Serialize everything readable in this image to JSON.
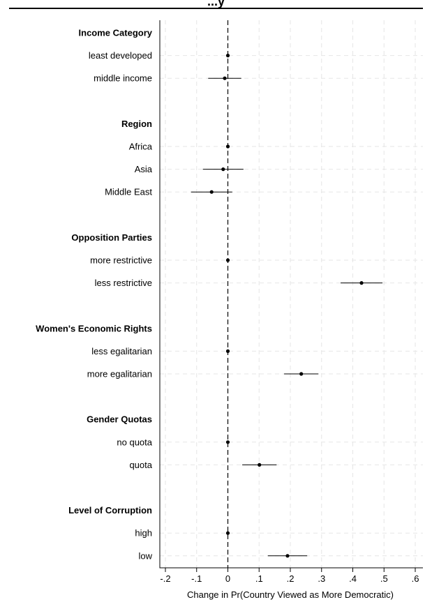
{
  "page": {
    "title": "...y"
  },
  "chart_data": {
    "type": "scatter",
    "title": "",
    "xlabel": "Change in Pr(Country Viewed as More Democratic)",
    "ylabel": "",
    "xlim": [
      -0.2,
      0.6
    ],
    "x_ticks": [
      {
        "value": -0.2,
        "label": "-.2"
      },
      {
        "value": -0.1,
        "label": "-.1"
      },
      {
        "value": 0,
        "label": "0"
      },
      {
        "value": 0.1,
        "label": ".1"
      },
      {
        "value": 0.2,
        "label": ".2"
      },
      {
        "value": 0.3,
        "label": ".3"
      },
      {
        "value": 0.4,
        "label": ".4"
      },
      {
        "value": 0.5,
        "label": ".5"
      },
      {
        "value": 0.6,
        "label": ".6"
      }
    ],
    "reference_line": {
      "x": 0,
      "style": "dashed"
    },
    "grid": true,
    "rows": [
      {
        "kind": "group",
        "label": "Income Category"
      },
      {
        "kind": "item",
        "label": "least developed",
        "estimate": 0,
        "ci": [
          0,
          0
        ]
      },
      {
        "kind": "item",
        "label": "middle income",
        "estimate": -0.01,
        "ci": [
          -0.063,
          0.043
        ]
      },
      {
        "kind": "blank"
      },
      {
        "kind": "group",
        "label": "Region"
      },
      {
        "kind": "item",
        "label": "Africa",
        "estimate": 0,
        "ci": [
          0,
          0
        ]
      },
      {
        "kind": "item",
        "label": "Asia",
        "estimate": -0.015,
        "ci": [
          -0.08,
          0.05
        ]
      },
      {
        "kind": "item",
        "label": "Middle East",
        "estimate": -0.052,
        "ci": [
          -0.118,
          0.014
        ]
      },
      {
        "kind": "blank"
      },
      {
        "kind": "group",
        "label": "Opposition Parties"
      },
      {
        "kind": "item",
        "label": "more restrictive",
        "estimate": 0,
        "ci": [
          0,
          0
        ]
      },
      {
        "kind": "item",
        "label": "less restrictive",
        "estimate": 0.428,
        "ci": [
          0.361,
          0.495
        ]
      },
      {
        "kind": "blank"
      },
      {
        "kind": "group",
        "label": "Women's Economic Rights"
      },
      {
        "kind": "item",
        "label": "less egalitarian",
        "estimate": 0,
        "ci": [
          0,
          0
        ]
      },
      {
        "kind": "item",
        "label": "more egalitarian",
        "estimate": 0.235,
        "ci": [
          0.18,
          0.29
        ]
      },
      {
        "kind": "blank"
      },
      {
        "kind": "group",
        "label": "Gender Quotas"
      },
      {
        "kind": "item",
        "label": "no quota",
        "estimate": 0,
        "ci": [
          0,
          0
        ]
      },
      {
        "kind": "item",
        "label": "quota",
        "estimate": 0.101,
        "ci": [
          0.046,
          0.156
        ]
      },
      {
        "kind": "blank"
      },
      {
        "kind": "group",
        "label": "Level of Corruption"
      },
      {
        "kind": "item",
        "label": "high",
        "estimate": 0,
        "ci": [
          0,
          0
        ]
      },
      {
        "kind": "item",
        "label": "low",
        "estimate": 0.191,
        "ci": [
          0.128,
          0.254
        ]
      }
    ]
  }
}
